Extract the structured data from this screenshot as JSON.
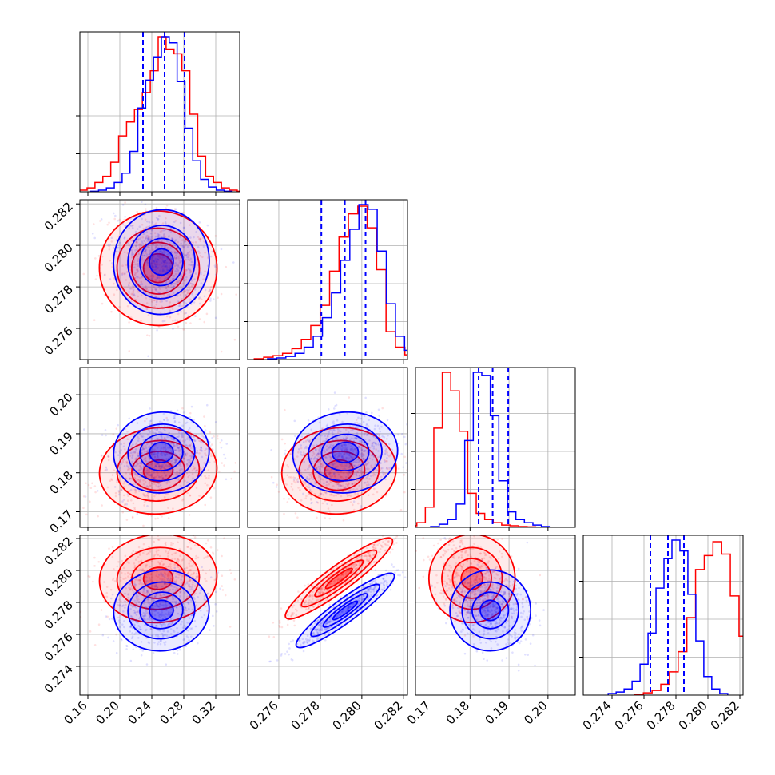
{
  "chart_data": {
    "type": "corner",
    "grid": true,
    "parameters": [
      {
        "range": [
          0.15,
          0.35
        ],
        "ticks": [
          0.16,
          0.2,
          0.24,
          0.28,
          0.32
        ],
        "tick_labels": [
          "0.16",
          "0.20",
          "0.24",
          "0.28",
          "0.32"
        ]
      },
      {
        "range": [
          0.2745,
          0.2822
        ],
        "ticks": [
          0.276,
          0.278,
          0.28,
          0.282
        ],
        "tick_labels": [
          "0.276",
          "0.278",
          "0.280",
          "0.282"
        ]
      },
      {
        "range": [
          0.166,
          0.207
        ],
        "ticks": [
          0.17,
          0.18,
          0.19,
          0.2
        ],
        "tick_labels": [
          "0.17",
          "0.18",
          "0.19",
          "0.20"
        ]
      },
      {
        "range": [
          0.2722,
          0.2822
        ],
        "ticks": [
          0.274,
          0.276,
          0.278,
          0.28,
          0.282
        ],
        "tick_labels": [
          "0.274",
          "0.276",
          "0.278",
          "0.280",
          "0.282"
        ]
      }
    ],
    "series": [
      {
        "color": "#ff0000",
        "mean": [
          0.248,
          0.2789,
          0.1805,
          0.2795
        ],
        "std": [
          0.032,
          0.0012,
          0.0048,
          0.0012
        ],
        "hist": [
          [
            0.3,
            1,
            2.5,
            6,
            10,
            19,
            36,
            45,
            53,
            64,
            78,
            100,
            92,
            89,
            78,
            50,
            23,
            10,
            6,
            2.5,
            1,
            0.3
          ],
          [
            0.5,
            1.5,
            2.5,
            4,
            7,
            13,
            22,
            35,
            57,
            79,
            94,
            99,
            85,
            58,
            18,
            8,
            3,
            1
          ],
          [
            1,
            3,
            13,
            64,
            100,
            88,
            62,
            22,
            9,
            5,
            3,
            1.5,
            1,
            0.5,
            0.3
          ],
          [
            0.5,
            1.5,
            3,
            7,
            15,
            28,
            50,
            81,
            90,
            99,
            91,
            64,
            38,
            14,
            3
          ]
        ],
        "blob_offsets": [
          [
            -0.0007,
            0.0004,
            0.0,
            0.0
          ],
          [
            0.03,
            -0.0009,
            0.0,
            0.0
          ],
          [
            -0.025,
            0.001,
            0.0,
            0.0
          ]
        ]
      },
      {
        "color": "#0000ff",
        "mean": [
          0.252,
          0.2792,
          0.1852,
          0.2775
        ],
        "std": [
          0.026,
          0.0011,
          0.0045,
          0.0011
        ],
        "hist": [
          [
            0.3,
            1,
            2.5,
            6,
            12,
            26,
            54,
            72,
            87,
            100,
            96,
            71,
            41,
            20,
            8,
            3,
            1,
            0.3
          ],
          [
            0.5,
            1,
            2,
            4,
            8,
            15,
            27,
            43,
            64,
            84,
            100,
            97,
            70,
            36,
            15,
            6,
            2
          ],
          [
            0.5,
            2,
            5,
            15,
            56,
            100,
            98,
            72,
            30,
            10,
            5,
            3,
            1.5,
            0.5
          ],
          [
            1,
            2,
            4,
            9,
            20,
            40,
            69,
            88,
            100,
            93,
            65,
            35,
            12,
            4,
            1
          ]
        ],
        "blob_offsets": [
          [
            0.0007,
            0.0005,
            0.0,
            0.0
          ],
          [
            -0.02,
            -0.0006,
            0.0,
            0.0
          ],
          [
            0.025,
            0.0008,
            0.0,
            0.0
          ]
        ]
      }
    ],
    "quantile_lines": {
      "color": "#0000ff",
      "values": [
        [
          0.229,
          0.256,
          0.281
        ],
        [
          0.27805,
          0.27918,
          0.28018
        ],
        [
          0.1822,
          0.1858,
          0.1898
        ],
        [
          0.2764,
          0.2775,
          0.2785
        ]
      ]
    }
  }
}
